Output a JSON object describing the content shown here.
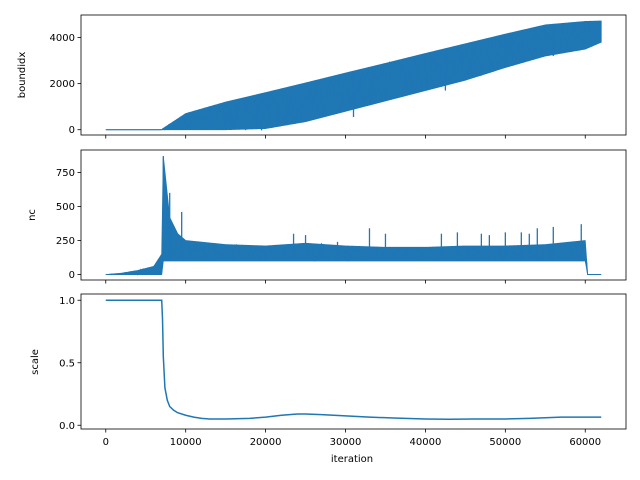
{
  "chart_data": [
    {
      "type": "line",
      "ylabel": "boundidx",
      "xlabel": "",
      "xlim": [
        -3100,
        65100
      ],
      "ylim": [
        -230,
        4980
      ],
      "xticks": [
        0,
        10000,
        20000,
        30000,
        40000,
        50000,
        60000
      ],
      "xtick_labels_shown": false,
      "yticks": [
        0,
        2000,
        4000
      ],
      "ytick_labels": [
        "0",
        "2000",
        "4000"
      ],
      "color": "#1f77b4",
      "series": [
        {
          "x": [
            0,
            7000,
            7200,
            10000,
            15000,
            20000,
            25000,
            30000,
            35000,
            40000,
            45000,
            50000,
            55000,
            60000,
            62000
          ],
          "upper": [
            0,
            0,
            60,
            700,
            1200,
            1610,
            2030,
            2460,
            2880,
            3310,
            3730,
            4150,
            4550,
            4700,
            4720
          ],
          "lower": [
            0,
            0,
            0,
            0,
            0,
            50,
            350,
            800,
            1250,
            1700,
            2150,
            2700,
            3200,
            3500,
            3800
          ],
          "dips": [
            [
              13000,
              0
            ],
            [
              17500,
              -20
            ],
            [
              19500,
              -30
            ],
            [
              24500,
              700
            ],
            [
              31000,
              550
            ],
            [
              42500,
              1700
            ],
            [
              50000,
              2700
            ],
            [
              56000,
              3200
            ],
            [
              60500,
              3600
            ]
          ]
        }
      ]
    },
    {
      "type": "line",
      "ylabel": "nc",
      "xlabel": "",
      "xlim": [
        -3100,
        65100
      ],
      "ylim": [
        -40,
        915
      ],
      "xticks": [
        0,
        10000,
        20000,
        30000,
        40000,
        50000,
        60000
      ],
      "xtick_labels_shown": false,
      "yticks": [
        0,
        250,
        500,
        750
      ],
      "ytick_labels": [
        "0",
        "250",
        "500",
        "750"
      ],
      "color": "#1f77b4",
      "series": [
        {
          "x": [
            0,
            2000,
            4000,
            6000,
            7000,
            7200,
            8000,
            9000,
            10000,
            15000,
            20000,
            25000,
            30000,
            35000,
            40000,
            45000,
            50000,
            55000,
            60000,
            60300,
            62000
          ],
          "upper": [
            0,
            10,
            30,
            60,
            150,
            870,
            420,
            300,
            250,
            220,
            210,
            230,
            210,
            200,
            200,
            210,
            210,
            220,
            250,
            0,
            0
          ],
          "lower": [
            0,
            0,
            0,
            0,
            0,
            100,
            100,
            100,
            100,
            100,
            100,
            100,
            100,
            100,
            100,
            100,
            100,
            100,
            100,
            0,
            0
          ],
          "spikes": [
            [
              7200,
              870
            ],
            [
              8000,
              600
            ],
            [
              9500,
              460
            ],
            [
              23500,
              300
            ],
            [
              25000,
              290
            ],
            [
              27000,
              230
            ],
            [
              29000,
              240
            ],
            [
              33000,
              340
            ],
            [
              35000,
              300
            ],
            [
              42000,
              300
            ],
            [
              44000,
              310
            ],
            [
              47000,
              300
            ],
            [
              48000,
              290
            ],
            [
              50000,
              310
            ],
            [
              52000,
              310
            ],
            [
              53000,
              300
            ],
            [
              54000,
              340
            ],
            [
              56000,
              350
            ],
            [
              59500,
              370
            ]
          ]
        }
      ]
    },
    {
      "type": "line",
      "ylabel": "scale",
      "xlabel": "iteration",
      "xlim": [
        -3100,
        65100
      ],
      "ylim": [
        -0.03,
        1.05
      ],
      "xticks": [
        0,
        10000,
        20000,
        30000,
        40000,
        50000,
        60000
      ],
      "xtick_labels": [
        "0",
        "10000",
        "20000",
        "30000",
        "40000",
        "50000",
        "60000"
      ],
      "yticks": [
        0.0,
        0.5,
        1.0
      ],
      "ytick_labels": [
        "0.0",
        "0.5",
        "1.0"
      ],
      "color": "#1f77b4",
      "series": [
        {
          "x": [
            0,
            7000,
            7100,
            7200,
            7400,
            7700,
            8000,
            8500,
            9000,
            10000,
            11000,
            12000,
            13000,
            15000,
            18000,
            20000,
            22000,
            24000,
            25000,
            27000,
            30000,
            33000,
            36000,
            40000,
            43000,
            46000,
            50000,
            53000,
            55000,
            57000,
            60000,
            62000
          ],
          "y": [
            1.0,
            1.0,
            0.85,
            0.55,
            0.3,
            0.2,
            0.15,
            0.12,
            0.1,
            0.08,
            0.065,
            0.055,
            0.05,
            0.05,
            0.055,
            0.065,
            0.08,
            0.09,
            0.09,
            0.085,
            0.075,
            0.065,
            0.058,
            0.05,
            0.048,
            0.05,
            0.05,
            0.055,
            0.06,
            0.065,
            0.065,
            0.065
          ]
        }
      ]
    }
  ]
}
